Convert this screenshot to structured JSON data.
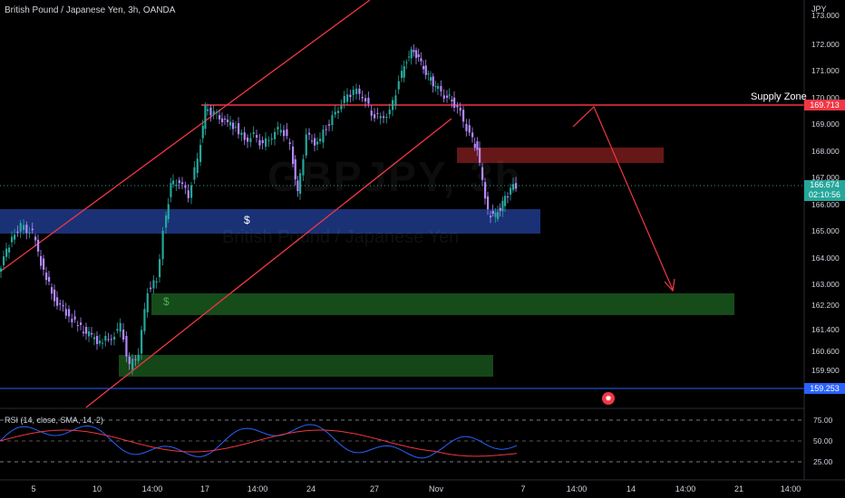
{
  "header": {
    "symbol_title": "British Pound / Japanese Yen, 3h, OANDA",
    "currency": "JPY"
  },
  "watermark": {
    "ticker": "GBPJPY, 3h",
    "name": "British Pound / Japanese Yen"
  },
  "price_axis": {
    "labels": [
      "173.000",
      "172.000",
      "171.000",
      "170.000",
      "169.000",
      "168.000",
      "167.000",
      "166.000",
      "165.000",
      "164.000",
      "163.000",
      "162.200",
      "161.400",
      "160.600",
      "159.900"
    ]
  },
  "price_tags": {
    "supply": "169.713",
    "current_price": "166.674",
    "countdown": "02:10:56",
    "support": "159.253"
  },
  "time_axis": {
    "labels": [
      "5",
      "10",
      "14:00",
      "17",
      "14:00",
      "24",
      "27",
      "Nov",
      "7",
      "14:00",
      "14",
      "14:00",
      "21",
      "14:00"
    ]
  },
  "annotations": {
    "supply_zone": "Supply Zone",
    "dollar_blue": "$",
    "dollar_green": "$",
    "event_icon": "flag-icon"
  },
  "rsi": {
    "title": "RSI (14, close, SMA, 14, 2)",
    "levels": [
      "75.00",
      "50.00",
      "25.00"
    ]
  },
  "colors": {
    "background": "#000000",
    "bull": "#26a69a",
    "bear": "#b388ff",
    "trendline": "#f23645",
    "blue_zone": "#1e3a8a",
    "green_zone": "#1b5e20",
    "red_zone": "#7f1d1d",
    "rsi_line": "#2962ff",
    "rsi_ma": "#f23645"
  }
}
